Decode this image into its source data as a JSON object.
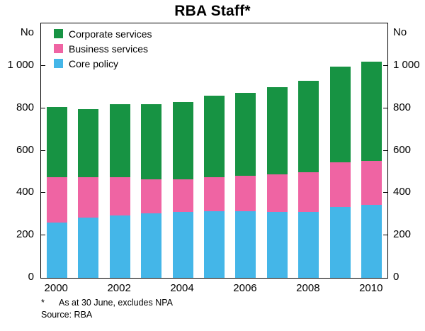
{
  "title": "RBA Staff*",
  "y_axis_unit_left": "No",
  "y_axis_unit_right": "No",
  "footnote_marker": "*",
  "footnote_text": "As at 30 June, excludes NPA",
  "source": "Source: RBA",
  "legend": [
    {
      "label": "Corporate services",
      "color": "#179343"
    },
    {
      "label": "Business services",
      "color": "#ef64a3"
    },
    {
      "label": "Core policy",
      "color": "#44b6e8"
    }
  ],
  "chart_data": {
    "type": "bar",
    "stacked": true,
    "title": "RBA Staff*",
    "xlabel": "",
    "ylabel": "No",
    "ylim": [
      0,
      1200
    ],
    "grid": false,
    "legend_position": "top-left",
    "categories": [
      "2000",
      "2001",
      "2002",
      "2003",
      "2004",
      "2005",
      "2006",
      "2007",
      "2008",
      "2009",
      "2010"
    ],
    "series": [
      {
        "name": "Core policy",
        "color": "#44b6e8",
        "values": [
          260,
          285,
          295,
          305,
          310,
          315,
          315,
          310,
          310,
          335,
          343
        ]
      },
      {
        "name": "Business services",
        "color": "#ef64a3",
        "values": [
          215,
          190,
          180,
          160,
          155,
          160,
          165,
          178,
          188,
          210,
          208
        ]
      },
      {
        "name": "Corporate services",
        "color": "#179343",
        "values": [
          330,
          320,
          345,
          353,
          365,
          385,
          392,
          412,
          432,
          450,
          470
        ]
      }
    ],
    "totals": [
      805,
      795,
      820,
      818,
      830,
      860,
      872,
      900,
      930,
      995,
      1021
    ],
    "y_ticks": [
      {
        "value": 0,
        "label": "0"
      },
      {
        "value": 200,
        "label": "200"
      },
      {
        "value": 400,
        "label": "400"
      },
      {
        "value": 600,
        "label": "600"
      },
      {
        "value": 800,
        "label": "800"
      },
      {
        "value": 1000,
        "label": "1 000"
      }
    ],
    "x_ticks": [
      {
        "index": 0,
        "label": "2000"
      },
      {
        "index": 2,
        "label": "2002"
      },
      {
        "index": 4,
        "label": "2004"
      },
      {
        "index": 6,
        "label": "2006"
      },
      {
        "index": 8,
        "label": "2008"
      },
      {
        "index": 10,
        "label": "2010"
      }
    ]
  }
}
